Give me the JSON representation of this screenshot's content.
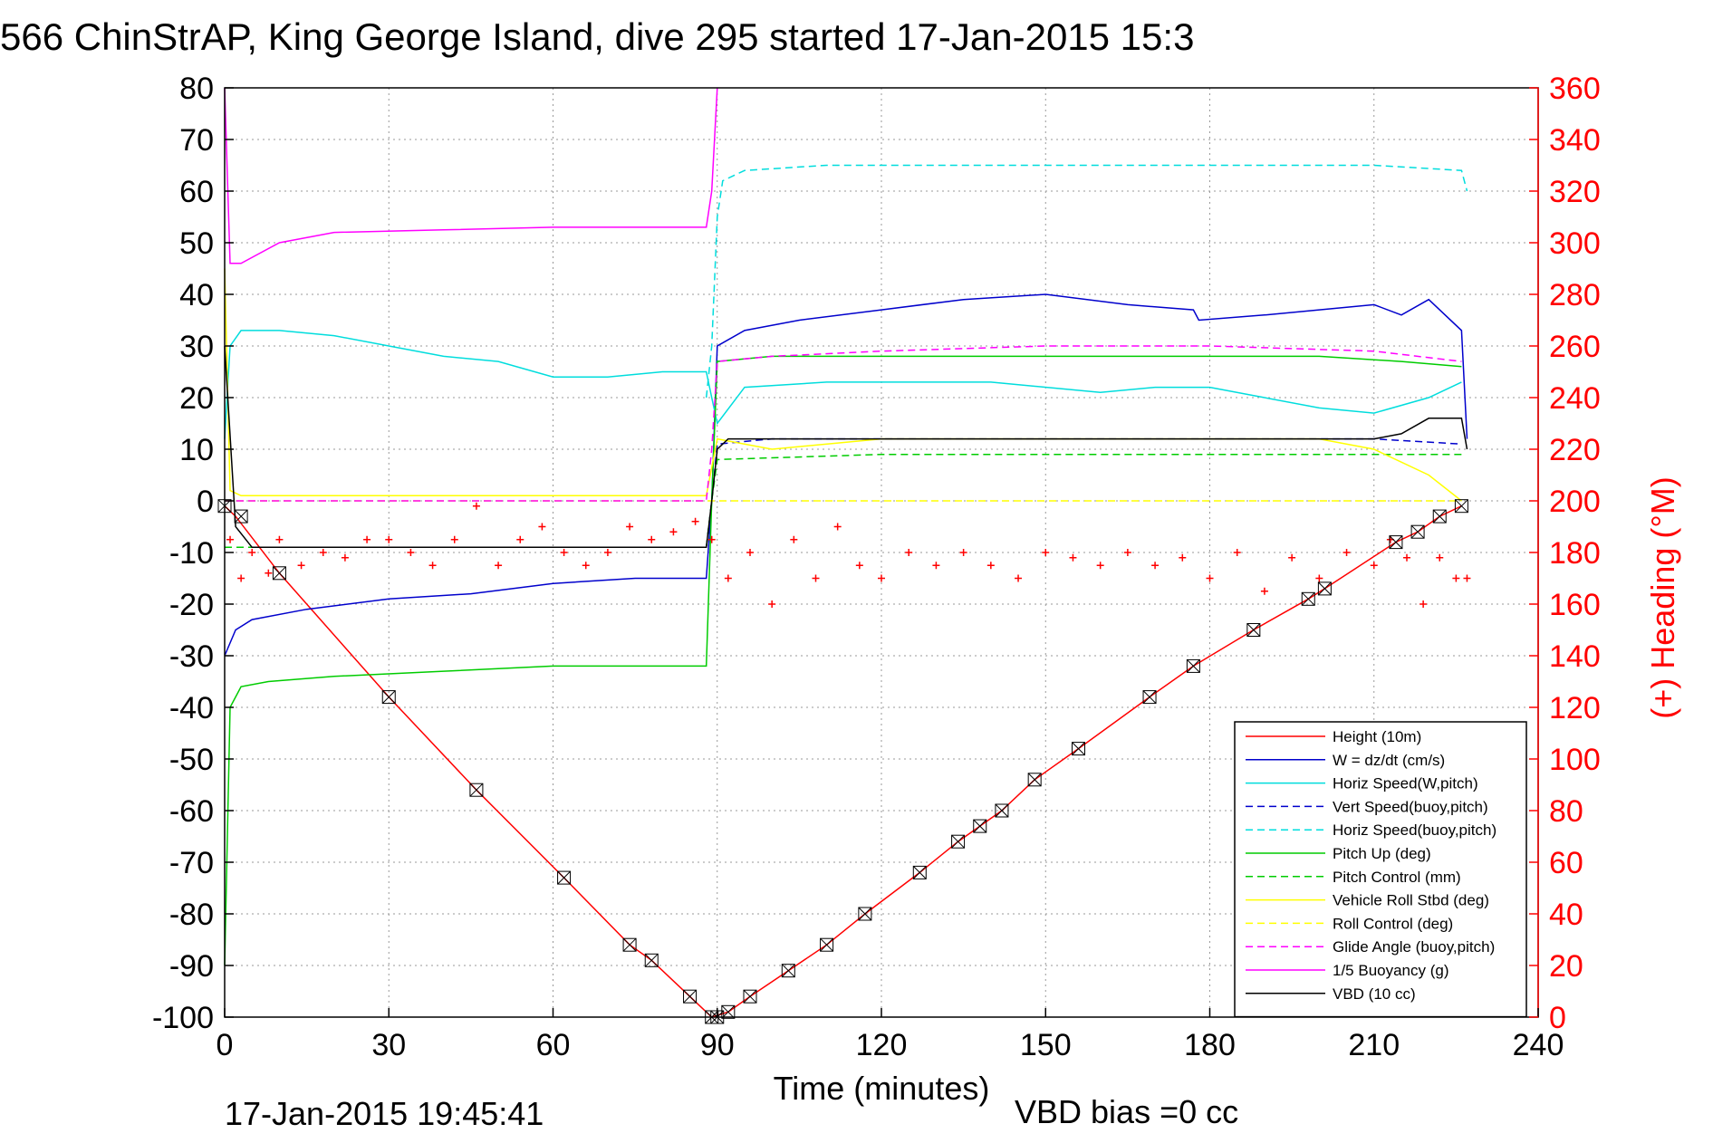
{
  "chart_data": {
    "type": "line",
    "title": "566 ChinStrAP, King George Island, dive 295 started 17-Jan-2015 15:3",
    "xlabel": "Time (minutes)",
    "ylabel": "",
    "ylabel_right": "(+) Heading (°M)",
    "xlim": [
      0,
      240
    ],
    "ylim": [
      -100,
      80
    ],
    "ylim_right": [
      0,
      360
    ],
    "x_ticks": [
      0,
      30,
      60,
      90,
      120,
      150,
      180,
      210,
      240
    ],
    "y_ticks": [
      80,
      70,
      60,
      50,
      40,
      30,
      20,
      10,
      0,
      -10,
      -20,
      -30,
      -40,
      -50,
      -60,
      -70,
      -80,
      -90,
      -100
    ],
    "y_ticks_right": [
      360,
      340,
      320,
      300,
      280,
      260,
      240,
      220,
      200,
      180,
      160,
      140,
      120,
      100,
      80,
      60,
      40,
      20,
      0
    ],
    "grid": true,
    "legend_position": "bottom-right",
    "footer_left": "17-Jan-2015 19:45:41",
    "footer_right": "VBD bias =0 cc",
    "series": [
      {
        "name": "Height (10m)",
        "color": "#ff0000",
        "dash": "solid",
        "x": [
          0,
          2,
          10,
          30,
          46,
          62,
          74,
          78,
          85,
          89,
          92,
          96,
          103,
          110,
          117,
          127,
          134,
          138,
          142,
          148,
          156,
          169,
          177,
          188,
          198,
          201,
          214,
          218,
          222,
          226
        ],
        "y": [
          -1,
          -3,
          -14,
          -38,
          -56,
          -73,
          -86,
          -89,
          -96,
          -100,
          -99,
          -96,
          -91,
          -86,
          -80,
          -72,
          -66,
          -63,
          -60,
          -54,
          -48,
          -38,
          -32,
          -25,
          -19,
          -17,
          -8,
          -6,
          -3,
          -1
        ]
      },
      {
        "name": "W = dz/dt (cm/s)",
        "color": "#0000cc",
        "dash": "solid",
        "x": [
          0,
          2,
          5,
          15,
          30,
          45,
          60,
          75,
          88,
          89,
          90,
          95,
          105,
          120,
          135,
          150,
          165,
          177,
          178,
          190,
          200,
          210,
          215,
          220,
          226,
          227
        ],
        "y": [
          -30,
          -25,
          -23,
          -21,
          -19,
          -18,
          -16,
          -15,
          -15,
          0,
          30,
          33,
          35,
          37,
          39,
          40,
          38,
          37,
          35,
          36,
          37,
          38,
          36,
          39,
          33,
          12
        ]
      },
      {
        "name": "Horiz Speed(W,pitch)",
        "color": "#00dddd",
        "dash": "solid",
        "x": [
          0,
          1,
          3,
          10,
          20,
          30,
          40,
          50,
          60,
          70,
          80,
          88,
          89,
          90,
          95,
          110,
          120,
          140,
          160,
          170,
          180,
          190,
          200,
          210,
          220,
          226
        ],
        "y": [
          12,
          30,
          33,
          33,
          32,
          30,
          28,
          27,
          24,
          24,
          25,
          25,
          20,
          15,
          22,
          23,
          23,
          23,
          21,
          22,
          22,
          20,
          18,
          17,
          20,
          23
        ]
      },
      {
        "name": "Vert Speed(buoy,pitch)",
        "color": "#0000cc",
        "dash": "dashed",
        "x": [
          0,
          88,
          89,
          90,
          100,
          120,
          150,
          180,
          210,
          226
        ],
        "y": [
          -9,
          -9,
          0,
          11,
          12,
          12,
          12,
          12,
          12,
          11
        ]
      },
      {
        "name": "Horiz Speed(buoy,pitch)",
        "color": "#00dddd",
        "dash": "dashed",
        "x": [
          88,
          89,
          90,
          91,
          95,
          110,
          130,
          150,
          170,
          190,
          210,
          226,
          227
        ],
        "y": [
          20,
          30,
          55,
          62,
          64,
          65,
          65,
          65,
          65,
          65,
          65,
          64,
          60
        ]
      },
      {
        "name": "Pitch Up (deg)",
        "color": "#00cc00",
        "dash": "solid",
        "x": [
          0,
          1,
          3,
          8,
          20,
          40,
          60,
          75,
          88,
          89,
          90,
          100,
          120,
          140,
          160,
          180,
          200,
          215,
          226
        ],
        "y": [
          -90,
          -40,
          -36,
          -35,
          -34,
          -33,
          -32,
          -32,
          -32,
          0,
          27,
          28,
          28,
          28,
          28,
          28,
          28,
          27,
          26
        ]
      },
      {
        "name": "Pitch Control (mm)",
        "color": "#00cc00",
        "dash": "dashed",
        "x": [
          0,
          88,
          89,
          90,
          120,
          150,
          180,
          210,
          226
        ],
        "y": [
          -9,
          -9,
          0,
          8,
          9,
          9,
          9,
          9,
          9
        ]
      },
      {
        "name": "Vehicle Roll Stbd (deg)",
        "color": "#ffff00",
        "dash": "solid",
        "x": [
          0,
          1,
          3,
          10,
          30,
          46,
          62,
          75,
          88,
          90,
          100,
          120,
          140,
          160,
          180,
          200,
          210,
          220,
          226
        ],
        "y": [
          45,
          2,
          1,
          1,
          1,
          1,
          1,
          1,
          1,
          12,
          10,
          12,
          12,
          12,
          12,
          12,
          10,
          5,
          0
        ]
      },
      {
        "name": "Roll Control (deg)",
        "color": "#ffff00",
        "dash": "dashed",
        "x": [
          0,
          90,
          120,
          150,
          180,
          210,
          226
        ],
        "y": [
          0,
          0,
          0,
          0,
          0,
          0,
          0
        ]
      },
      {
        "name": "Glide Angle (buoy,pitch)",
        "color": "#ff00ff",
        "dash": "dashed",
        "x": [
          0,
          88,
          89,
          90,
          100,
          120,
          150,
          180,
          210,
          226
        ],
        "y": [
          0,
          0,
          10,
          27,
          28,
          29,
          30,
          30,
          29,
          27
        ]
      },
      {
        "name": "1/5 Buoyancy (g)",
        "color": "#ff00ff",
        "dash": "solid",
        "x": [
          0,
          1,
          3,
          10,
          20,
          40,
          60,
          80,
          88,
          89,
          90
        ],
        "y": [
          80,
          46,
          46,
          50,
          52,
          52.5,
          53,
          53,
          53,
          60,
          80
        ]
      },
      {
        "name": "VBD (10 cc)",
        "color": "#000000",
        "dash": "solid",
        "x": [
          0,
          2,
          5,
          10,
          30,
          60,
          88,
          89,
          90,
          92,
          120,
          150,
          180,
          210,
          215,
          220,
          226,
          227
        ],
        "y": [
          30,
          -5,
          -9,
          -9,
          -9,
          -9,
          -9,
          0,
          10,
          12,
          12,
          12,
          12,
          12,
          13,
          16,
          16,
          10
        ]
      }
    ],
    "heading": {
      "name": "(+) Heading (°M)",
      "color": "#ff0000",
      "x": [
        1,
        3,
        5,
        8,
        10,
        14,
        18,
        22,
        26,
        30,
        34,
        38,
        42,
        46,
        50,
        54,
        58,
        62,
        66,
        70,
        74,
        78,
        82,
        86,
        89,
        92,
        96,
        100,
        104,
        108,
        112,
        116,
        120,
        125,
        130,
        135,
        140,
        145,
        150,
        155,
        160,
        165,
        170,
        175,
        180,
        185,
        190,
        195,
        200,
        205,
        210,
        213,
        216,
        219,
        222,
        225,
        227
      ],
      "y": [
        185,
        170,
        180,
        172,
        185,
        175,
        180,
        178,
        185,
        185,
        180,
        175,
        185,
        198,
        175,
        185,
        190,
        180,
        175,
        180,
        190,
        185,
        188,
        192,
        185,
        170,
        180,
        160,
        185,
        170,
        190,
        175,
        170,
        180,
        175,
        180,
        175,
        170,
        180,
        178,
        175,
        180,
        175,
        178,
        170,
        180,
        165,
        178,
        170,
        180,
        175,
        185,
        178,
        160,
        178,
        170,
        170
      ]
    },
    "vbd_markers": {
      "x": [
        0,
        3,
        10,
        30,
        46,
        62,
        74,
        78,
        85,
        89,
        90,
        92,
        96,
        103,
        110,
        117,
        127,
        134,
        138,
        142,
        148,
        156,
        169,
        177,
        188,
        198,
        201,
        214,
        218,
        222,
        226
      ],
      "y": [
        -1,
        -3,
        -14,
        -38,
        -56,
        -73,
        -86,
        -89,
        -96,
        -100,
        -100,
        -99,
        -96,
        -91,
        -86,
        -80,
        -72,
        -66,
        -63,
        -60,
        -54,
        -48,
        -38,
        -32,
        -25,
        -19,
        -17,
        -8,
        -6,
        -3,
        -1
      ]
    }
  }
}
